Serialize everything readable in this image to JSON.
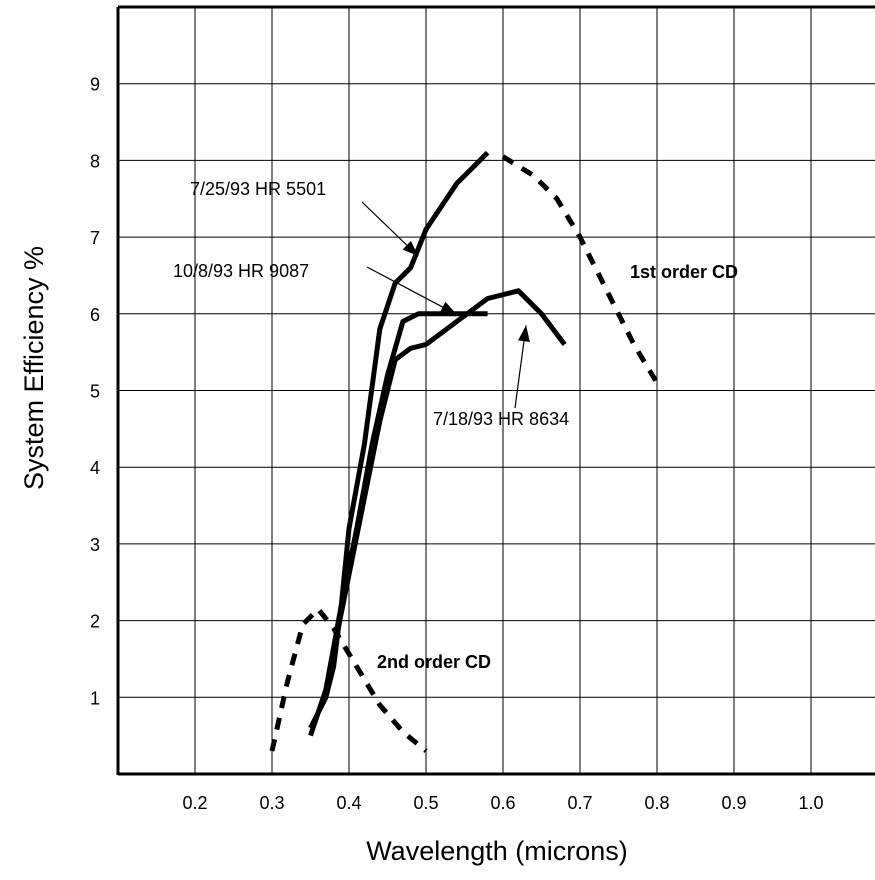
{
  "chart_data": {
    "type": "line",
    "title": "",
    "xlabel": "Wavelength (microns)",
    "ylabel": "System Efficiency %",
    "xlim": [
      0.1,
      1.1
    ],
    "ylim": [
      0,
      10
    ],
    "grid": true,
    "legend": "none",
    "x_ticks": [
      "0.2",
      "0.3",
      "0.4",
      "0.5",
      "0.6",
      "0.7",
      "0.8",
      "0.9",
      "1.0"
    ],
    "y_ticks": [
      "1",
      "2",
      "3",
      "4",
      "5",
      "6",
      "7",
      "8",
      "9"
    ],
    "series": [
      {
        "style": "solid",
        "points": [
          [
            0.35,
            0.6
          ],
          [
            0.37,
            1.0
          ],
          [
            0.38,
            1.4
          ],
          [
            0.39,
            2.2
          ],
          [
            0.4,
            3.2
          ],
          [
            0.42,
            4.3
          ],
          [
            0.44,
            5.8
          ],
          [
            0.46,
            6.4
          ],
          [
            0.48,
            6.6
          ],
          [
            0.5,
            7.1
          ],
          [
            0.52,
            7.4
          ],
          [
            0.54,
            7.7
          ],
          [
            0.56,
            7.9
          ],
          [
            0.58,
            8.1
          ]
        ]
      },
      {
        "style": "solid",
        "points": [
          [
            0.35,
            0.5
          ],
          [
            0.37,
            1.1
          ],
          [
            0.39,
            2.2
          ],
          [
            0.41,
            3.2
          ],
          [
            0.43,
            4.3
          ],
          [
            0.45,
            5.2
          ],
          [
            0.47,
            5.9
          ],
          [
            0.49,
            6.0
          ],
          [
            0.55,
            6.0
          ],
          [
            0.58,
            6.0
          ]
        ]
      },
      {
        "style": "solid",
        "points": [
          [
            0.38,
            1.6
          ],
          [
            0.4,
            2.6
          ],
          [
            0.42,
            3.6
          ],
          [
            0.44,
            4.6
          ],
          [
            0.46,
            5.4
          ],
          [
            0.48,
            5.55
          ],
          [
            0.5,
            5.6
          ],
          [
            0.54,
            5.9
          ],
          [
            0.58,
            6.2
          ],
          [
            0.62,
            6.3
          ],
          [
            0.65,
            6.0
          ],
          [
            0.68,
            5.6
          ]
        ]
      },
      {
        "name": "1st order CD",
        "style": "dashed",
        "points": [
          [
            0.6,
            8.05
          ],
          [
            0.64,
            7.8
          ],
          [
            0.67,
            7.5
          ],
          [
            0.7,
            7.0
          ],
          [
            0.74,
            6.2
          ],
          [
            0.77,
            5.6
          ],
          [
            0.8,
            5.1
          ]
        ]
      },
      {
        "name": "2nd order CD",
        "style": "dashed",
        "points": [
          [
            0.3,
            0.3
          ],
          [
            0.32,
            1.2
          ],
          [
            0.34,
            1.95
          ],
          [
            0.36,
            2.15
          ],
          [
            0.38,
            1.9
          ],
          [
            0.41,
            1.4
          ],
          [
            0.44,
            0.9
          ],
          [
            0.47,
            0.55
          ],
          [
            0.5,
            0.3
          ]
        ]
      }
    ],
    "annotations": [
      {
        "text": "7/25/93 HR 5501",
        "bold": false,
        "arrow_to": [
          0.49,
          6.75
        ]
      },
      {
        "text": "10/8/93 HR 9087",
        "bold": false,
        "arrow_to": [
          0.54,
          5.99
        ]
      },
      {
        "text": "7/18/93 HR 8634",
        "bold": false,
        "arrow_to": [
          0.63,
          5.85
        ]
      },
      {
        "text": "1st order CD",
        "bold": true
      },
      {
        "text": "2nd order CD",
        "bold": true
      }
    ]
  }
}
